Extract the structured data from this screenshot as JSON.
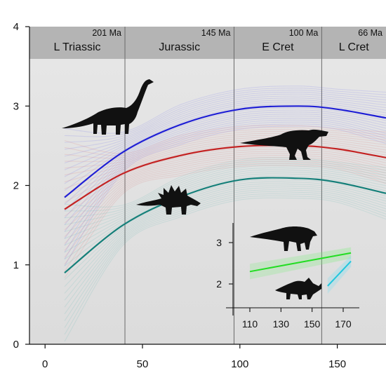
{
  "chart_data": [
    {
      "type": "line",
      "xlim": [
        -8,
        175
      ],
      "ylim": [
        0,
        4
      ],
      "x_ticks": [
        0,
        50,
        100,
        150
      ],
      "y_ticks": [
        0,
        1,
        2,
        3,
        4
      ],
      "grid": false,
      "periods": [
        {
          "name": "L Triassic",
          "boundary_label": "201 Ma",
          "start": 0,
          "end": 41
        },
        {
          "name": "Jurassic",
          "boundary_label": "145 Ma",
          "start": 41,
          "end": 97
        },
        {
          "name": "E Cret",
          "boundary_label": "100 Ma",
          "start": 97,
          "end": 142
        },
        {
          "name": "L Cret",
          "boundary_label": "66 Ma",
          "start": 142,
          "end": 175
        }
      ],
      "series": [
        {
          "color": "#1f1fd6",
          "uncertainty_color": "#5b5bf0",
          "x": [
            10,
            40,
            70,
            100,
            130,
            150,
            175
          ],
          "values": [
            1.85,
            2.42,
            2.77,
            2.96,
            3.0,
            2.96,
            2.85
          ]
        },
        {
          "color": "#c42323",
          "uncertainty_color": "#e06a6a",
          "x": [
            10,
            40,
            70,
            100,
            130,
            150,
            175
          ],
          "values": [
            1.7,
            2.15,
            2.38,
            2.49,
            2.5,
            2.46,
            2.35
          ]
        },
        {
          "color": "#15807a",
          "uncertainty_color": "#4fb3ac",
          "x": [
            10,
            40,
            70,
            100,
            130,
            150,
            175
          ],
          "values": [
            0.9,
            1.5,
            1.86,
            2.07,
            2.09,
            2.04,
            1.9
          ]
        }
      ],
      "silhouettes": [
        "sauropod-silhouette",
        "theropod-silhouette",
        "stegosaur-silhouette"
      ]
    },
    {
      "type": "line",
      "xlim": [
        100,
        180
      ],
      "ylim": [
        1.5,
        3.5
      ],
      "x_ticks": [
        110,
        130,
        150,
        170
      ],
      "y_ticks": [
        2,
        3
      ],
      "series": [
        {
          "color": "#22dd22",
          "uncertainty_color": "#7cf07c",
          "x": [
            110,
            175
          ],
          "values": [
            2.3,
            2.75
          ]
        },
        {
          "color": "#22c6dd",
          "uncertainty_color": "#88e0f0",
          "x": [
            160,
            175
          ],
          "values": [
            1.95,
            2.55
          ]
        }
      ],
      "silhouettes": [
        "hadrosaur-silhouette",
        "ceratopsian-silhouette"
      ]
    }
  ]
}
